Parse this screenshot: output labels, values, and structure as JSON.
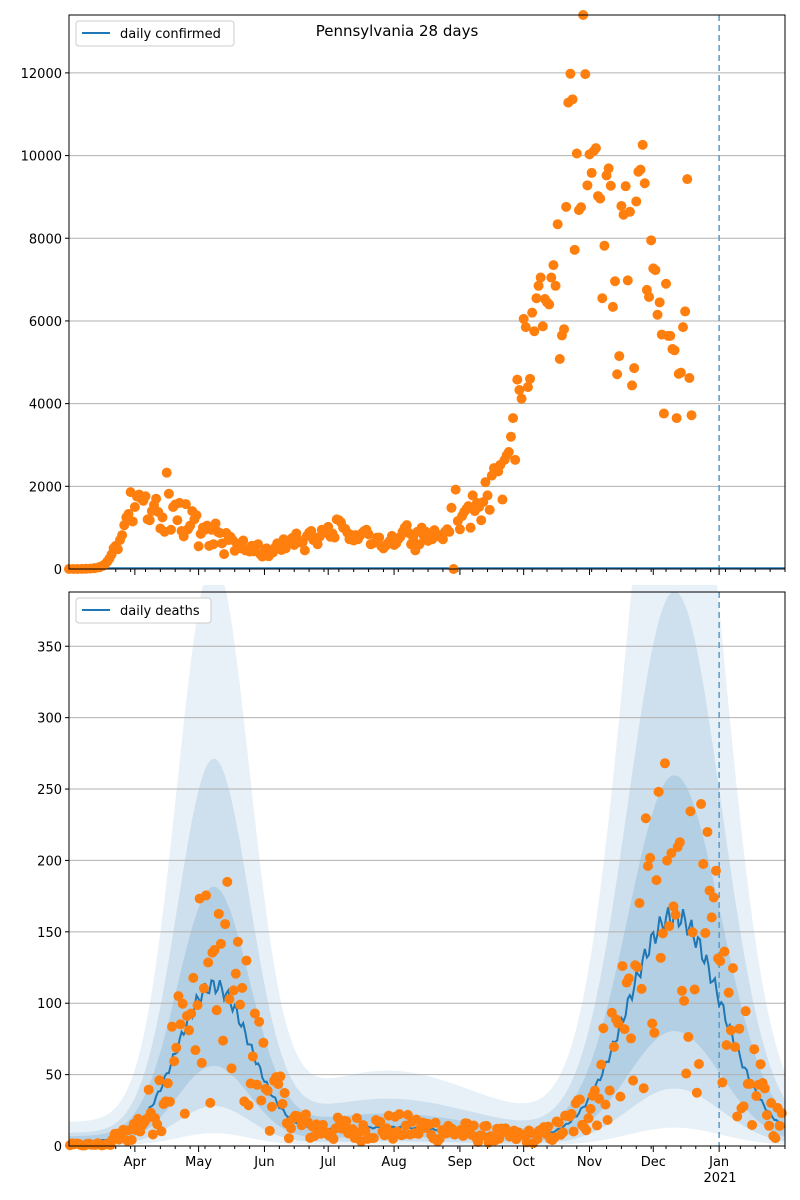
{
  "chart_data": [
    {
      "type": "scatter",
      "title": "Pennsylvania 28 days",
      "legend": {
        "label": "daily confirmed",
        "placement": "top-left"
      },
      "xlim": [
        "2020-03-01",
        "2021-02-01"
      ],
      "ylim": [
        0,
        13400
      ],
      "yticks": [
        0,
        2000,
        4000,
        6000,
        8000,
        10000,
        12000
      ],
      "grid": "y",
      "vline_date": "2021-01-01",
      "colors": {
        "line": "#1f77b4",
        "points": "#ff7f0e",
        "band": "#1f77b4"
      },
      "points": [
        [
          "2020-03-01",
          0
        ],
        [
          "2020-03-03",
          0
        ],
        [
          "2020-03-05",
          0
        ],
        [
          "2020-03-07",
          2
        ],
        [
          "2020-03-09",
          5
        ],
        [
          "2020-03-11",
          10
        ],
        [
          "2020-03-13",
          20
        ],
        [
          "2020-03-15",
          40
        ],
        [
          "2020-03-16",
          60
        ],
        [
          "2020-03-17",
          80
        ],
        [
          "2020-03-18",
          120
        ],
        [
          "2020-03-19",
          180
        ],
        [
          "2020-03-20",
          250
        ],
        [
          "2020-03-21",
          350
        ],
        [
          "2020-03-22",
          500
        ],
        [
          "2020-03-23",
          560
        ],
        [
          "2020-03-24",
          480
        ],
        [
          "2020-03-25",
          700
        ],
        [
          "2020-03-26",
          820
        ],
        [
          "2020-03-27",
          1060
        ],
        [
          "2020-03-28",
          1250
        ],
        [
          "2020-03-29",
          1330
        ],
        [
          "2020-03-30",
          1860
        ],
        [
          "2020-03-31",
          1150
        ],
        [
          "2020-04-01",
          1500
        ],
        [
          "2020-04-02",
          1750
        ],
        [
          "2020-04-03",
          1800
        ],
        [
          "2020-04-04",
          1700
        ],
        [
          "2020-04-05",
          1650
        ],
        [
          "2020-04-06",
          1760
        ],
        [
          "2020-04-07",
          1200
        ],
        [
          "2020-04-08",
          1180
        ],
        [
          "2020-04-09",
          1400
        ],
        [
          "2020-04-10",
          1550
        ],
        [
          "2020-04-11",
          1700
        ],
        [
          "2020-04-12",
          1380
        ],
        [
          "2020-04-13",
          980
        ],
        [
          "2020-04-14",
          1250
        ],
        [
          "2020-04-15",
          900
        ],
        [
          "2020-04-16",
          2330
        ],
        [
          "2020-04-17",
          1820
        ],
        [
          "2020-04-18",
          950
        ],
        [
          "2020-04-19",
          1500
        ],
        [
          "2020-04-20",
          1560
        ],
        [
          "2020-04-21",
          1180
        ],
        [
          "2020-04-22",
          1600
        ],
        [
          "2020-04-23",
          920
        ],
        [
          "2020-04-24",
          790
        ],
        [
          "2020-04-25",
          1570
        ],
        [
          "2020-04-26",
          960
        ],
        [
          "2020-04-27",
          1050
        ],
        [
          "2020-04-28",
          1400
        ],
        [
          "2020-04-29",
          1200
        ],
        [
          "2020-04-30",
          1300
        ],
        [
          "2020-05-01",
          550
        ],
        [
          "2020-05-02",
          850
        ],
        [
          "2020-05-03",
          1000
        ],
        [
          "2020-05-04",
          950
        ],
        [
          "2020-05-05",
          1050
        ],
        [
          "2020-05-06",
          560
        ],
        [
          "2020-05-07",
          950
        ],
        [
          "2020-05-08",
          600
        ],
        [
          "2020-05-09",
          1100
        ],
        [
          "2020-05-10",
          900
        ],
        [
          "2020-05-11",
          870
        ],
        [
          "2020-05-12",
          620
        ],
        [
          "2020-05-13",
          360
        ],
        [
          "2020-05-14",
          870
        ],
        [
          "2020-05-15",
          700
        ],
        [
          "2020-05-16",
          780
        ],
        [
          "2020-05-17",
          700
        ],
        [
          "2020-05-18",
          440
        ],
        [
          "2020-05-19",
          620
        ],
        [
          "2020-05-20",
          550
        ],
        [
          "2020-05-21",
          500
        ],
        [
          "2020-05-22",
          690
        ],
        [
          "2020-05-23",
          450
        ],
        [
          "2020-05-24",
          480
        ],
        [
          "2020-05-25",
          420
        ],
        [
          "2020-05-26",
          560
        ],
        [
          "2020-05-27",
          430
        ],
        [
          "2020-05-28",
          560
        ],
        [
          "2020-05-29",
          600
        ],
        [
          "2020-05-30",
          360
        ],
        [
          "2020-05-31",
          300
        ],
        [
          "2020-06-01",
          420
        ],
        [
          "2020-06-02",
          500
        ],
        [
          "2020-06-03",
          310
        ],
        [
          "2020-06-04",
          450
        ],
        [
          "2020-06-05",
          400
        ],
        [
          "2020-06-06",
          520
        ],
        [
          "2020-06-07",
          620
        ],
        [
          "2020-06-08",
          540
        ],
        [
          "2020-06-09",
          460
        ],
        [
          "2020-06-10",
          720
        ],
        [
          "2020-06-11",
          500
        ],
        [
          "2020-06-12",
          650
        ],
        [
          "2020-06-13",
          640
        ],
        [
          "2020-06-14",
          750
        ],
        [
          "2020-06-15",
          580
        ],
        [
          "2020-06-16",
          860
        ],
        [
          "2020-06-17",
          700
        ],
        [
          "2020-06-18",
          640
        ],
        [
          "2020-06-19",
          650
        ],
        [
          "2020-06-20",
          450
        ],
        [
          "2020-06-21",
          800
        ],
        [
          "2020-06-22",
          880
        ],
        [
          "2020-06-23",
          920
        ],
        [
          "2020-06-24",
          700
        ],
        [
          "2020-06-25",
          760
        ],
        [
          "2020-06-26",
          600
        ],
        [
          "2020-06-27",
          780
        ],
        [
          "2020-06-28",
          950
        ],
        [
          "2020-06-29",
          880
        ],
        [
          "2020-06-30",
          940
        ],
        [
          "2020-07-01",
          1020
        ],
        [
          "2020-07-02",
          780
        ],
        [
          "2020-07-03",
          860
        ],
        [
          "2020-07-04",
          760
        ],
        [
          "2020-07-05",
          1200
        ],
        [
          "2020-07-06",
          1180
        ],
        [
          "2020-07-07",
          1130
        ],
        [
          "2020-07-08",
          1000
        ],
        [
          "2020-07-09",
          970
        ],
        [
          "2020-07-10",
          880
        ],
        [
          "2020-07-11",
          720
        ],
        [
          "2020-07-12",
          820
        ],
        [
          "2020-07-13",
          690
        ],
        [
          "2020-07-14",
          820
        ],
        [
          "2020-07-15",
          720
        ],
        [
          "2020-07-16",
          810
        ],
        [
          "2020-07-17",
          870
        ],
        [
          "2020-07-18",
          920
        ],
        [
          "2020-07-19",
          950
        ],
        [
          "2020-07-20",
          840
        ],
        [
          "2020-07-21",
          600
        ],
        [
          "2020-07-22",
          620
        ],
        [
          "2020-07-23",
          640
        ],
        [
          "2020-07-24",
          760
        ],
        [
          "2020-07-25",
          760
        ],
        [
          "2020-07-26",
          550
        ],
        [
          "2020-07-27",
          500
        ],
        [
          "2020-07-28",
          560
        ],
        [
          "2020-07-29",
          620
        ],
        [
          "2020-07-30",
          680
        ],
        [
          "2020-07-31",
          800
        ],
        [
          "2020-08-01",
          580
        ],
        [
          "2020-08-02",
          620
        ],
        [
          "2020-08-03",
          720
        ],
        [
          "2020-08-04",
          780
        ],
        [
          "2020-08-05",
          900
        ],
        [
          "2020-08-06",
          1000
        ],
        [
          "2020-08-07",
          1060
        ],
        [
          "2020-08-08",
          870
        ],
        [
          "2020-08-09",
          600
        ],
        [
          "2020-08-10",
          760
        ],
        [
          "2020-08-11",
          450
        ],
        [
          "2020-08-12",
          900
        ],
        [
          "2020-08-13",
          600
        ],
        [
          "2020-08-14",
          1000
        ],
        [
          "2020-08-15",
          800
        ],
        [
          "2020-08-16",
          900
        ],
        [
          "2020-08-17",
          680
        ],
        [
          "2020-08-18",
          860
        ],
        [
          "2020-08-19",
          720
        ],
        [
          "2020-08-20",
          940
        ],
        [
          "2020-08-21",
          800
        ],
        [
          "2020-08-22",
          820
        ],
        [
          "2020-08-23",
          770
        ],
        [
          "2020-08-24",
          720
        ],
        [
          "2020-08-25",
          900
        ],
        [
          "2020-08-26",
          960
        ],
        [
          "2020-08-27",
          900
        ],
        [
          "2020-08-28",
          1480
        ],
        [
          "2020-08-29",
          0
        ],
        [
          "2020-08-30",
          1920
        ],
        [
          "2020-08-31",
          1160
        ],
        [
          "2020-09-01",
          960
        ],
        [
          "2020-09-02",
          1280
        ],
        [
          "2020-09-03",
          1380
        ],
        [
          "2020-09-04",
          1450
        ],
        [
          "2020-09-05",
          1520
        ],
        [
          "2020-09-06",
          1000
        ],
        [
          "2020-09-07",
          1780
        ],
        [
          "2020-09-08",
          1400
        ],
        [
          "2020-09-09",
          1600
        ],
        [
          "2020-09-10",
          1500
        ],
        [
          "2020-09-11",
          1180
        ],
        [
          "2020-09-12",
          1620
        ],
        [
          "2020-09-13",
          2100
        ],
        [
          "2020-09-14",
          1780
        ],
        [
          "2020-09-15",
          1430
        ],
        [
          "2020-09-16",
          2260
        ],
        [
          "2020-09-17",
          2440
        ],
        [
          "2020-09-18",
          2390
        ],
        [
          "2020-09-19",
          2360
        ],
        [
          "2020-09-20",
          2520
        ],
        [
          "2020-09-21",
          1680
        ],
        [
          "2020-09-22",
          2640
        ],
        [
          "2020-09-23",
          2750
        ],
        [
          "2020-09-24",
          2830
        ],
        [
          "2020-09-25",
          3200
        ],
        [
          "2020-09-26",
          3650
        ],
        [
          "2020-09-27",
          2640
        ],
        [
          "2020-09-28",
          4580
        ],
        [
          "2020-09-29",
          4330
        ],
        [
          "2020-09-30",
          4120
        ],
        [
          "2020-10-01",
          6050
        ],
        [
          "2020-10-02",
          5850
        ],
        [
          "2020-10-03",
          4400
        ],
        [
          "2020-10-04",
          4600
        ],
        [
          "2020-10-05",
          6200
        ],
        [
          "2020-10-06",
          5750
        ],
        [
          "2020-10-07",
          6550
        ],
        [
          "2020-10-08",
          6850
        ],
        [
          "2020-10-09",
          7050
        ],
        [
          "2020-10-10",
          5870
        ],
        [
          "2020-10-11",
          6530
        ],
        [
          "2020-10-12",
          6450
        ],
        [
          "2020-10-13",
          6400
        ],
        [
          "2020-10-14",
          7050
        ],
        [
          "2020-10-15",
          7350
        ],
        [
          "2020-10-16",
          6850
        ],
        [
          "2020-10-17",
          8340
        ],
        [
          "2020-10-18",
          5080
        ],
        [
          "2020-10-19",
          5650
        ],
        [
          "2020-10-20",
          5800
        ],
        [
          "2020-10-21",
          8760
        ],
        [
          "2020-10-22",
          11280
        ],
        [
          "2020-10-23",
          11980
        ],
        [
          "2020-10-24",
          11360
        ],
        [
          "2020-10-25",
          7720
        ],
        [
          "2020-10-26",
          10050
        ],
        [
          "2020-10-27",
          8680
        ],
        [
          "2020-10-28",
          8750
        ],
        [
          "2020-10-29",
          13400
        ],
        [
          "2020-10-30",
          11970
        ],
        [
          "2020-10-31",
          9280
        ],
        [
          "2020-11-01",
          10030
        ],
        [
          "2020-11-02",
          9580
        ],
        [
          "2020-11-03",
          10110
        ],
        [
          "2020-11-04",
          10180
        ],
        [
          "2020-11-05",
          9020
        ],
        [
          "2020-11-06",
          8960
        ],
        [
          "2020-11-07",
          6550
        ],
        [
          "2020-11-08",
          7820
        ],
        [
          "2020-11-09",
          9520
        ],
        [
          "2020-11-10",
          9690
        ],
        [
          "2020-11-11",
          9270
        ],
        [
          "2020-11-12",
          6340
        ],
        [
          "2020-11-13",
          6960
        ],
        [
          "2020-11-14",
          4710
        ],
        [
          "2020-11-15",
          5150
        ],
        [
          "2020-11-16",
          8780
        ],
        [
          "2020-11-17",
          8570
        ],
        [
          "2020-11-18",
          9260
        ],
        [
          "2020-11-19",
          6980
        ],
        [
          "2020-11-20",
          8640
        ],
        [
          "2020-11-21",
          4440
        ],
        [
          "2020-11-22",
          4860
        ],
        [
          "2020-11-23",
          8890
        ],
        [
          "2020-11-24",
          9610
        ],
        [
          "2020-11-25",
          9660
        ],
        [
          "2020-11-26",
          10260
        ],
        [
          "2020-11-27",
          9330
        ],
        [
          "2020-11-28",
          6750
        ],
        [
          "2020-11-29",
          6580
        ],
        [
          "2020-11-30",
          7950
        ],
        [
          "2020-12-01",
          7270
        ],
        [
          "2020-12-02",
          7230
        ],
        [
          "2020-12-03",
          6150
        ],
        [
          "2020-12-04",
          6450
        ],
        [
          "2020-12-05",
          5670
        ],
        [
          "2020-12-06",
          3760
        ],
        [
          "2020-12-07",
          6900
        ],
        [
          "2020-12-08",
          5640
        ],
        [
          "2020-12-09",
          5640
        ],
        [
          "2020-12-10",
          5320
        ],
        [
          "2020-12-11",
          5290
        ],
        [
          "2020-12-12",
          3650
        ],
        [
          "2020-12-13",
          4720
        ],
        [
          "2020-12-14",
          4750
        ],
        [
          "2020-12-15",
          5850
        ],
        [
          "2020-12-16",
          6230
        ],
        [
          "2020-12-17",
          9430
        ],
        [
          "2020-12-18",
          4620
        ],
        [
          "2020-12-19",
          3720
        ]
      ]
    },
    {
      "type": "line",
      "legend": {
        "label": "daily deaths",
        "placement": "top-left"
      },
      "xlim": [
        "2020-03-01",
        "2021-02-01"
      ],
      "ylim": [
        0,
        388
      ],
      "yticks": [
        0,
        50,
        100,
        150,
        200,
        250,
        300,
        350
      ],
      "xticks": [
        "Apr",
        "May",
        "Jun",
        "Jul",
        "Aug",
        "Sep",
        "Oct",
        "Nov",
        "Dec",
        "Jan"
      ],
      "xtick_year": "2021",
      "grid": "y",
      "vline_date": "2021-01-01"
    }
  ]
}
